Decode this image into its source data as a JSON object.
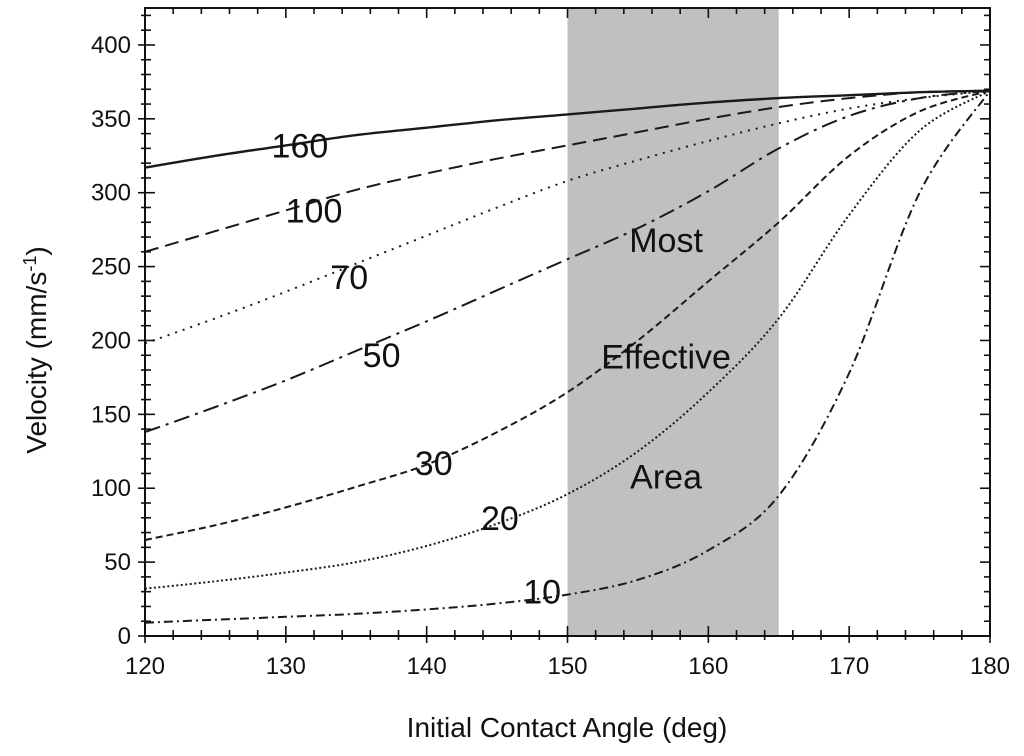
{
  "chart_data": {
    "type": "line",
    "title": "",
    "xlabel": "Initial Contact Angle (deg)",
    "ylabel_main": "Velocity (mm/s",
    "ylabel_sup": "-1",
    "ylabel_close": ")",
    "xlim": [
      120,
      180
    ],
    "ylim": [
      0,
      425
    ],
    "x_ticks": [
      120,
      130,
      140,
      150,
      160,
      170,
      180
    ],
    "x_tick_labels": [
      "120",
      "130",
      "140",
      "150",
      "160",
      "170",
      "180"
    ],
    "y_ticks": [
      0,
      50,
      100,
      150,
      200,
      250,
      300,
      350,
      400
    ],
    "y_tick_labels": [
      "0",
      "50",
      "100",
      "150",
      "200",
      "250",
      "300",
      "350",
      "400"
    ],
    "grid": false,
    "shaded_region": {
      "x_range": [
        150,
        165
      ],
      "color": "#c0c0c0",
      "labels": [
        "Most",
        "Effective",
        "Area"
      ]
    },
    "series": [
      {
        "name": "160",
        "dash": "solid",
        "x": [
          120,
          125,
          130,
          135,
          140,
          145,
          150,
          155,
          160,
          165,
          170,
          175,
          180
        ],
        "y": [
          317,
          325,
          332,
          339,
          344,
          349,
          353,
          357,
          361,
          364,
          366,
          368,
          369
        ]
      },
      {
        "name": "100",
        "dash": "dash",
        "x": [
          120,
          125,
          130,
          135,
          140,
          145,
          150,
          155,
          160,
          165,
          170,
          175,
          180
        ],
        "y": [
          260,
          274,
          288,
          302,
          313,
          323,
          332,
          341,
          350,
          358,
          364,
          368,
          369
        ]
      },
      {
        "name": "70",
        "dash": "dot",
        "x": [
          120,
          125,
          130,
          135,
          140,
          145,
          150,
          155,
          160,
          165,
          170,
          175,
          180
        ],
        "y": [
          198,
          215,
          233,
          252,
          271,
          290,
          308,
          322,
          335,
          347,
          357,
          364,
          369
        ]
      },
      {
        "name": "50",
        "dash": "dashdot",
        "x": [
          120,
          125,
          130,
          135,
          140,
          145,
          150,
          155,
          160,
          165,
          170,
          175,
          180
        ],
        "y": [
          138,
          155,
          173,
          193,
          213,
          234,
          255,
          276,
          301,
          330,
          352,
          364,
          369
        ]
      },
      {
        "name": "30",
        "dash": "shortdash",
        "x": [
          120,
          125,
          130,
          135,
          140,
          145,
          150,
          155,
          160,
          165,
          170,
          175,
          180
        ],
        "y": [
          65,
          75,
          87,
          101,
          116,
          138,
          165,
          200,
          240,
          280,
          325,
          355,
          369
        ]
      },
      {
        "name": "20",
        "dash": "finedot",
        "x": [
          120,
          125,
          130,
          135,
          140,
          145,
          150,
          155,
          160,
          165,
          170,
          175,
          180
        ],
        "y": [
          32,
          37,
          43,
          50,
          61,
          76,
          96,
          125,
          165,
          215,
          285,
          342,
          369
        ]
      },
      {
        "name": "10",
        "dash": "dashdotsmall",
        "x": [
          120,
          125,
          130,
          135,
          140,
          145,
          150,
          155,
          160,
          165,
          170,
          175,
          180
        ],
        "y": [
          9,
          11,
          13,
          15,
          18,
          22,
          28,
          38,
          58,
          95,
          178,
          300,
          369
        ]
      }
    ],
    "curve_labels": [
      {
        "text": "160",
        "x": 131,
        "y": 332
      },
      {
        "text": "100",
        "x": 132,
        "y": 288
      },
      {
        "text": "70",
        "x": 134.5,
        "y": 243
      },
      {
        "text": "50",
        "x": 136.8,
        "y": 190
      },
      {
        "text": "30",
        "x": 140.5,
        "y": 117
      },
      {
        "text": "20",
        "x": 145.2,
        "y": 80
      },
      {
        "text": "10",
        "x": 148.2,
        "y": 30
      }
    ],
    "region_label_positions": [
      {
        "x": 157,
        "y": 268
      },
      {
        "x": 157,
        "y": 189
      },
      {
        "x": 157,
        "y": 108
      }
    ]
  }
}
